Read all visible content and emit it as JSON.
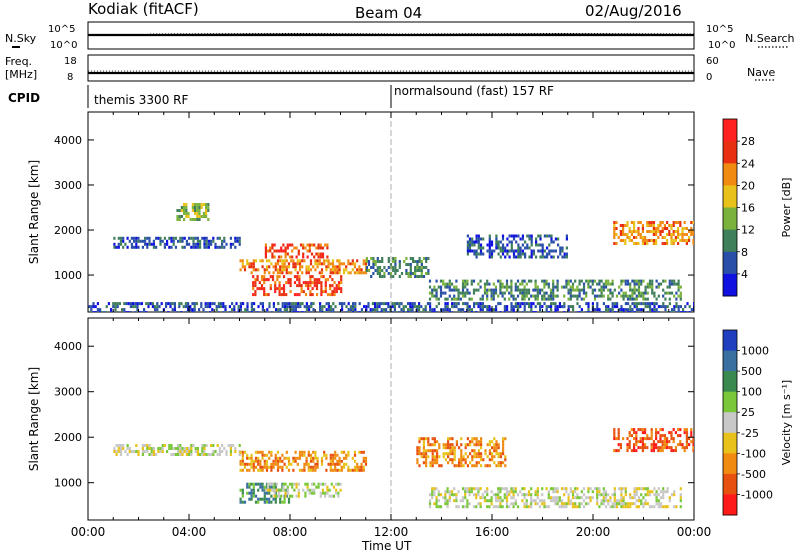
{
  "header": {
    "title": "Kodiak (fitACF)",
    "beam": "Beam 04",
    "date": "02/Aug/2016"
  },
  "strip_panels": {
    "nsky_label": "N.Sky",
    "nsky_ticks": [
      "10^5",
      "10^0"
    ],
    "nsearch_label": "N.Search",
    "nsearch_ticks": [
      "10^5",
      "10^0"
    ],
    "freq_label": "Freq.",
    "freq_unit": "[MHz]",
    "freq_ticks": [
      "18",
      "8"
    ],
    "nave_label": "Nave",
    "nave_ticks": [
      "60",
      "0"
    ],
    "cpid_label": "CPID",
    "cpid_modes": [
      "themis 3300 RF",
      "normalsound (fast) 157 RF"
    ]
  },
  "chart_data": [
    {
      "type": "heatmap",
      "title": "",
      "xlabel": "Time UT",
      "ylabel": "Slant Range [km]",
      "xlim": [
        "00:00",
        "24:00"
      ],
      "ylim": [
        180,
        4620
      ],
      "x_ticks": [
        "00:00",
        "04:00",
        "08:00",
        "12:00",
        "16:00",
        "20:00",
        "00:00"
      ],
      "y_ticks": [
        1000,
        2000,
        3000,
        4000
      ],
      "colorbar": {
        "label": "Power [dB]",
        "ticks": [
          4,
          8,
          12,
          16,
          20,
          24,
          28
        ],
        "colors": [
          "#1010e0",
          "#2a4fa8",
          "#3f7f5a",
          "#7ab23c",
          "#e8c21a",
          "#f08a10",
          "#e83010",
          "#ff2020"
        ]
      },
      "regions": [
        {
          "t_start": 1.0,
          "t_end": 6.0,
          "range_start": 1600,
          "range_end": 1850,
          "value": 6
        },
        {
          "t_start": 3.5,
          "t_end": 4.8,
          "range_start": 2250,
          "range_end": 2600,
          "value": 14
        },
        {
          "t_start": 6.0,
          "t_end": 11.0,
          "range_start": 1050,
          "range_end": 1350,
          "value": 22
        },
        {
          "t_start": 6.5,
          "t_end": 10.0,
          "range_start": 600,
          "range_end": 1000,
          "value": 27
        },
        {
          "t_start": 7.0,
          "t_end": 9.5,
          "range_start": 1400,
          "range_end": 1700,
          "value": 24
        },
        {
          "t_start": 11.0,
          "t_end": 13.5,
          "range_start": 1000,
          "range_end": 1400,
          "value": 10
        },
        {
          "t_start": 13.5,
          "t_end": 23.5,
          "range_start": 500,
          "range_end": 900,
          "value": 8
        },
        {
          "t_start": 15.0,
          "t_end": 19.0,
          "range_start": 1400,
          "range_end": 1900,
          "value": 6
        },
        {
          "t_start": 20.8,
          "t_end": 24.0,
          "range_start": 1700,
          "range_end": 2200,
          "value": 21
        },
        {
          "t_start": 0.0,
          "t_end": 24.0,
          "range_start": 200,
          "range_end": 400,
          "value": 5
        }
      ]
    },
    {
      "type": "heatmap",
      "title": "",
      "xlabel": "Time UT",
      "ylabel": "Slant Range [km]",
      "xlim": [
        "00:00",
        "24:00"
      ],
      "ylim": [
        180,
        4620
      ],
      "x_ticks": [
        "00:00",
        "04:00",
        "08:00",
        "12:00",
        "16:00",
        "20:00",
        "00:00"
      ],
      "y_ticks": [
        1000,
        2000,
        3000,
        4000
      ],
      "colorbar": {
        "label": "Velocity [m s⁻¹]",
        "ticks": [
          1000,
          500,
          100,
          25,
          -25,
          -100,
          -500,
          -1000
        ],
        "colors": [
          "#1f3fbf",
          "#3a70a0",
          "#3a8a50",
          "#7ac83a",
          "#c8c8c8",
          "#e8c21a",
          "#f08a10",
          "#e85010",
          "#ff1a1a"
        ]
      },
      "regions": [
        {
          "t_start": 1.0,
          "t_end": 6.0,
          "range_start": 1600,
          "range_end": 1850,
          "value": 0
        },
        {
          "t_start": 6.0,
          "t_end": 11.0,
          "range_start": 1300,
          "range_end": 1700,
          "value": -150
        },
        {
          "t_start": 6.0,
          "t_end": 8.0,
          "range_start": 600,
          "range_end": 1000,
          "value": 120
        },
        {
          "t_start": 7.0,
          "t_end": 10.0,
          "range_start": 700,
          "range_end": 1000,
          "value": 0
        },
        {
          "t_start": 13.0,
          "t_end": 16.5,
          "range_start": 1400,
          "range_end": 2000,
          "value": -300
        },
        {
          "t_start": 13.5,
          "t_end": 23.5,
          "range_start": 500,
          "range_end": 900,
          "value": 0
        },
        {
          "t_start": 20.8,
          "t_end": 24.0,
          "range_start": 1700,
          "range_end": 2200,
          "value": -600
        }
      ]
    }
  ]
}
